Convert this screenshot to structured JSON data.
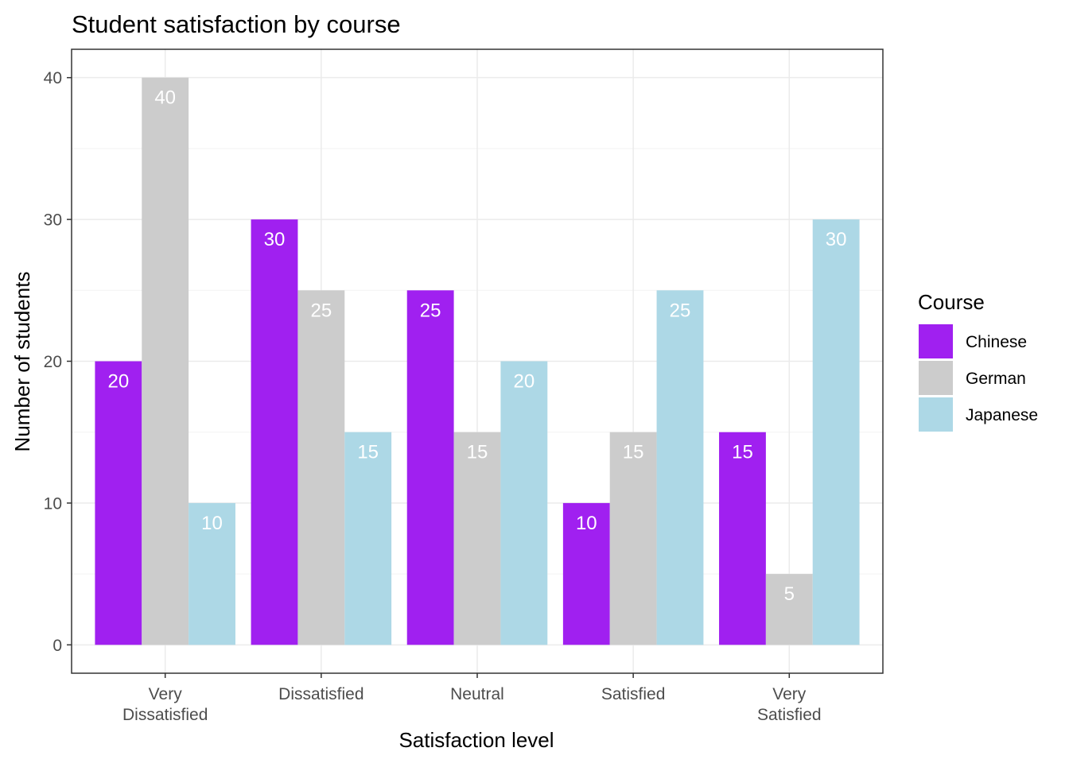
{
  "chart_data": {
    "type": "bar",
    "layout": "grouped",
    "title": "Student satisfaction by course",
    "xlabel": "Satisfaction level",
    "ylabel": "Number of students",
    "categories": [
      "Very Dissatisfied",
      "Dissatisfied",
      "Neutral",
      "Satisfied",
      "Very Satisfied"
    ],
    "category_tick_lines": [
      [
        "Very",
        "Dissatisfied"
      ],
      [
        "Dissatisfied"
      ],
      [
        "Neutral"
      ],
      [
        "Satisfied"
      ],
      [
        "Very",
        "Satisfied"
      ]
    ],
    "series": [
      {
        "name": "Chinese",
        "color": "#A020F0",
        "values": [
          20,
          30,
          25,
          10,
          15
        ]
      },
      {
        "name": "German",
        "color": "#CCCCCC",
        "values": [
          40,
          25,
          15,
          15,
          5
        ]
      },
      {
        "name": "Japanese",
        "color": "#ADD8E6",
        "values": [
          10,
          15,
          20,
          25,
          30
        ]
      }
    ],
    "ylim": [
      -2,
      42
    ],
    "yticks": [
      0,
      10,
      20,
      30,
      40
    ],
    "yticks_minor": [
      5,
      15,
      25,
      35
    ],
    "grid": true,
    "data_labels": true,
    "legend": {
      "title": "Course",
      "position": "right"
    }
  }
}
